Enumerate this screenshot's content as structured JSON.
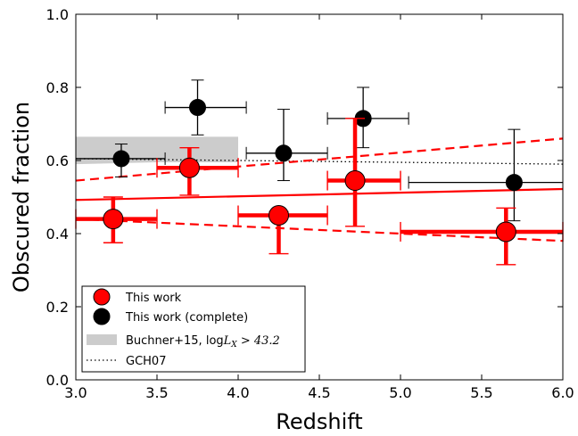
{
  "chart_data": {
    "type": "scatter",
    "xlabel": "Redshift",
    "ylabel": "Obscured fraction",
    "xlim": [
      3.0,
      6.0
    ],
    "ylim": [
      0.0,
      1.0
    ],
    "xticks": [
      "3.0",
      "3.5",
      "4.0",
      "4.5",
      "5.0",
      "5.5",
      "6.0"
    ],
    "yticks": [
      "0.0",
      "0.2",
      "0.4",
      "0.6",
      "0.8",
      "1.0"
    ],
    "grid": false,
    "legend_position": "lower-left",
    "series": [
      {
        "name": "This work",
        "color": "#ff0000",
        "marker": "circle",
        "points": [
          {
            "x": 3.23,
            "y": 0.44,
            "xerr": [
              3.0,
              3.5
            ],
            "yerr": [
              0.375,
              0.5
            ]
          },
          {
            "x": 3.7,
            "y": 0.58,
            "xerr": [
              3.5,
              4.0
            ],
            "yerr": [
              0.505,
              0.635
            ]
          },
          {
            "x": 4.25,
            "y": 0.45,
            "xerr": [
              4.0,
              4.55
            ],
            "yerr": [
              0.345,
              0.46
            ]
          },
          {
            "x": 4.72,
            "y": 0.545,
            "xerr": [
              4.55,
              5.0
            ],
            "yerr": [
              0.42,
              0.715
            ]
          },
          {
            "x": 5.65,
            "y": 0.405,
            "xerr": [
              5.0,
              6.0
            ],
            "yerr": [
              0.315,
              0.47
            ]
          }
        ]
      },
      {
        "name": "This work (complete)",
        "color": "#000000",
        "marker": "circle",
        "points": [
          {
            "x": 3.28,
            "y": 0.605,
            "xerr": [
              3.0,
              3.55
            ],
            "yerr": [
              0.555,
              0.645
            ]
          },
          {
            "x": 3.75,
            "y": 0.745,
            "xerr": [
              3.55,
              4.05
            ],
            "yerr": [
              0.67,
              0.82
            ]
          },
          {
            "x": 4.28,
            "y": 0.62,
            "xerr": [
              4.05,
              4.55
            ],
            "yerr": [
              0.545,
              0.74
            ]
          },
          {
            "x": 4.77,
            "y": 0.715,
            "xerr": [
              4.55,
              5.05
            ],
            "yerr": [
              0.635,
              0.8
            ]
          },
          {
            "x": 5.7,
            "y": 0.54,
            "xerr": [
              5.05,
              6.0
            ],
            "yerr": [
              0.435,
              0.685
            ]
          }
        ]
      }
    ],
    "buchner_band": {
      "label_prefix": "Buchner+15, log",
      "label_math": "L",
      "label_sub": "X",
      "label_suffix": " > 43.2",
      "color": "#cccccc",
      "x": [
        3.0,
        3.5,
        4.0
      ],
      "y_low": [
        0.59,
        0.595,
        0.595
      ],
      "y_high": [
        0.665,
        0.665,
        0.665
      ]
    },
    "gch07": {
      "label": "GCH07",
      "color": "#000000",
      "x": [
        3.0,
        6.0
      ],
      "y": [
        0.605,
        0.59
      ]
    },
    "fit": {
      "color": "#ff0000",
      "x": [
        3.0,
        6.0
      ],
      "y": [
        0.492,
        0.522
      ],
      "upper": [
        0.545,
        0.66
      ],
      "lower": [
        0.44,
        0.38
      ]
    }
  }
}
